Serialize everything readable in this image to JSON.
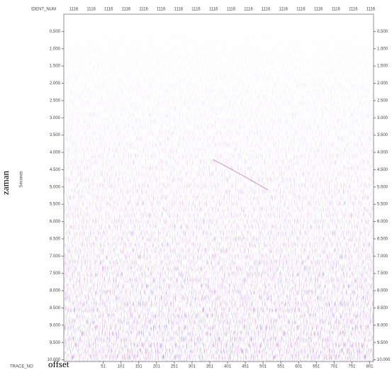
{
  "chart_data": {
    "type": "seismic",
    "top_axis_label": "IDENT_NUM",
    "top_labels": [
      "1116",
      "1116",
      "1116",
      "1116",
      "1116",
      "1116",
      "1116",
      "1116",
      "1116",
      "1116",
      "1116",
      "1116",
      "1116",
      "1116",
      "1116",
      "1116",
      "1116",
      "1116"
    ],
    "y_label": "Seconds",
    "y_annotation": "zaman",
    "x_axis_label": "TRACE_NO",
    "x_annotation": "offset",
    "ylim": [
      0,
      10.05
    ],
    "yticks": [
      {
        "value": 0.5,
        "label": "0.500"
      },
      {
        "value": 1,
        "label": "1.000"
      },
      {
        "value": 1.5,
        "label": "1.500"
      },
      {
        "value": 2,
        "label": "2.000"
      },
      {
        "value": 2.5,
        "label": "2.500"
      },
      {
        "value": 3,
        "label": "3.000"
      },
      {
        "value": 3.5,
        "label": "3.500"
      },
      {
        "value": 4,
        "label": "4.000"
      },
      {
        "value": 4.5,
        "label": "4.500"
      },
      {
        "value": 5,
        "label": "5.000"
      },
      {
        "value": 5.5,
        "label": "5.500"
      },
      {
        "value": 6,
        "label": "6.000"
      },
      {
        "value": 6.5,
        "label": "6.500"
      },
      {
        "value": 7,
        "label": "7.000"
      },
      {
        "value": 7.5,
        "label": "7.500"
      },
      {
        "value": 8,
        "label": "8.000"
      },
      {
        "value": 8.5,
        "label": "8.500"
      },
      {
        "value": 9,
        "label": "9.000"
      },
      {
        "value": 9.5,
        "label": "9.500"
      },
      {
        "value": 10,
        "label": "10.000"
      }
    ],
    "xlim": [
      -60,
      812
    ],
    "xticks": [
      51,
      101,
      151,
      201,
      251,
      301,
      351,
      401,
      451,
      501,
      551,
      601,
      651,
      701,
      751,
      801
    ]
  }
}
